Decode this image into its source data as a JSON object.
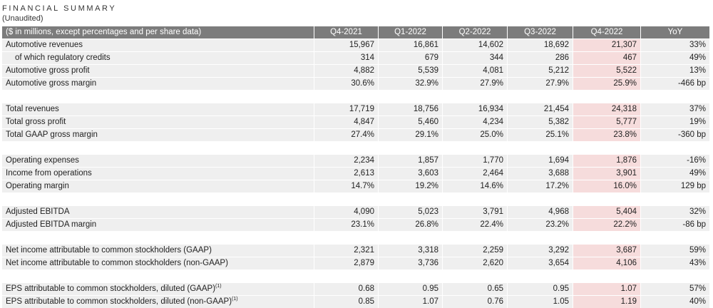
{
  "header": {
    "title": "FINANCIAL SUMMARY",
    "subtitle": "(Unaudited)"
  },
  "table": {
    "columns": [
      "($ in millions, except percentages and per share data)",
      "Q4-2021",
      "Q1-2022",
      "Q2-2022",
      "Q3-2022",
      "Q4-2022",
      "YoY"
    ],
    "groups": [
      [
        {
          "label": "Automotive revenues",
          "values": [
            "15,967",
            "16,861",
            "14,602",
            "18,692",
            "21,307",
            "33%"
          ]
        },
        {
          "label": "of which regulatory credits",
          "indent": true,
          "values": [
            "314",
            "679",
            "344",
            "286",
            "467",
            "49%"
          ]
        },
        {
          "label": "Automotive gross profit",
          "values": [
            "4,882",
            "5,539",
            "4,081",
            "5,212",
            "5,522",
            "13%"
          ]
        },
        {
          "label": "Automotive gross margin",
          "values": [
            "30.6%",
            "32.9%",
            "27.9%",
            "27.9%",
            "25.9%",
            "-466 bp"
          ]
        }
      ],
      [
        {
          "label": "Total revenues",
          "values": [
            "17,719",
            "18,756",
            "16,934",
            "21,454",
            "24,318",
            "37%"
          ]
        },
        {
          "label": "Total gross profit",
          "values": [
            "4,847",
            "5,460",
            "4,234",
            "5,382",
            "5,777",
            "19%"
          ]
        },
        {
          "label": "Total GAAP gross margin",
          "values": [
            "27.4%",
            "29.1%",
            "25.0%",
            "25.1%",
            "23.8%",
            "-360 bp"
          ]
        }
      ],
      [
        {
          "label": "Operating expenses",
          "values": [
            "2,234",
            "1,857",
            "1,770",
            "1,694",
            "1,876",
            "-16%"
          ]
        },
        {
          "label": "Income from operations",
          "values": [
            "2,613",
            "3,603",
            "2,464",
            "3,688",
            "3,901",
            "49%"
          ]
        },
        {
          "label": "Operating margin",
          "values": [
            "14.7%",
            "19.2%",
            "14.6%",
            "17.2%",
            "16.0%",
            "129 bp"
          ]
        }
      ],
      [
        {
          "label": "Adjusted EBITDA",
          "values": [
            "4,090",
            "5,023",
            "3,791",
            "4,968",
            "5,404",
            "32%"
          ]
        },
        {
          "label": "Adjusted EBITDA margin",
          "values": [
            "23.1%",
            "26.8%",
            "22.4%",
            "23.2%",
            "22.2%",
            "-86 bp"
          ]
        }
      ],
      [
        {
          "label": "Net income attributable to common stockholders (GAAP)",
          "values": [
            "2,321",
            "3,318",
            "2,259",
            "3,292",
            "3,687",
            "59%"
          ]
        },
        {
          "label": "Net income attributable to common stockholders (non-GAAP)",
          "values": [
            "2,879",
            "3,736",
            "2,620",
            "3,654",
            "4,106",
            "43%"
          ]
        }
      ],
      [
        {
          "label": "EPS attributable to common stockholders, diluted (GAAP)",
          "note": "(1)",
          "values": [
            "0.68",
            "0.95",
            "0.65",
            "0.95",
            "1.07",
            "57%"
          ]
        },
        {
          "label": "EPS attributable to common stockholders, diluted (non-GAAP)",
          "note": "(1)",
          "values": [
            "0.85",
            "1.07",
            "0.76",
            "1.05",
            "1.19",
            "40%"
          ]
        }
      ]
    ],
    "highlight_column": 5,
    "highlight_color": "#f6dcdc"
  }
}
